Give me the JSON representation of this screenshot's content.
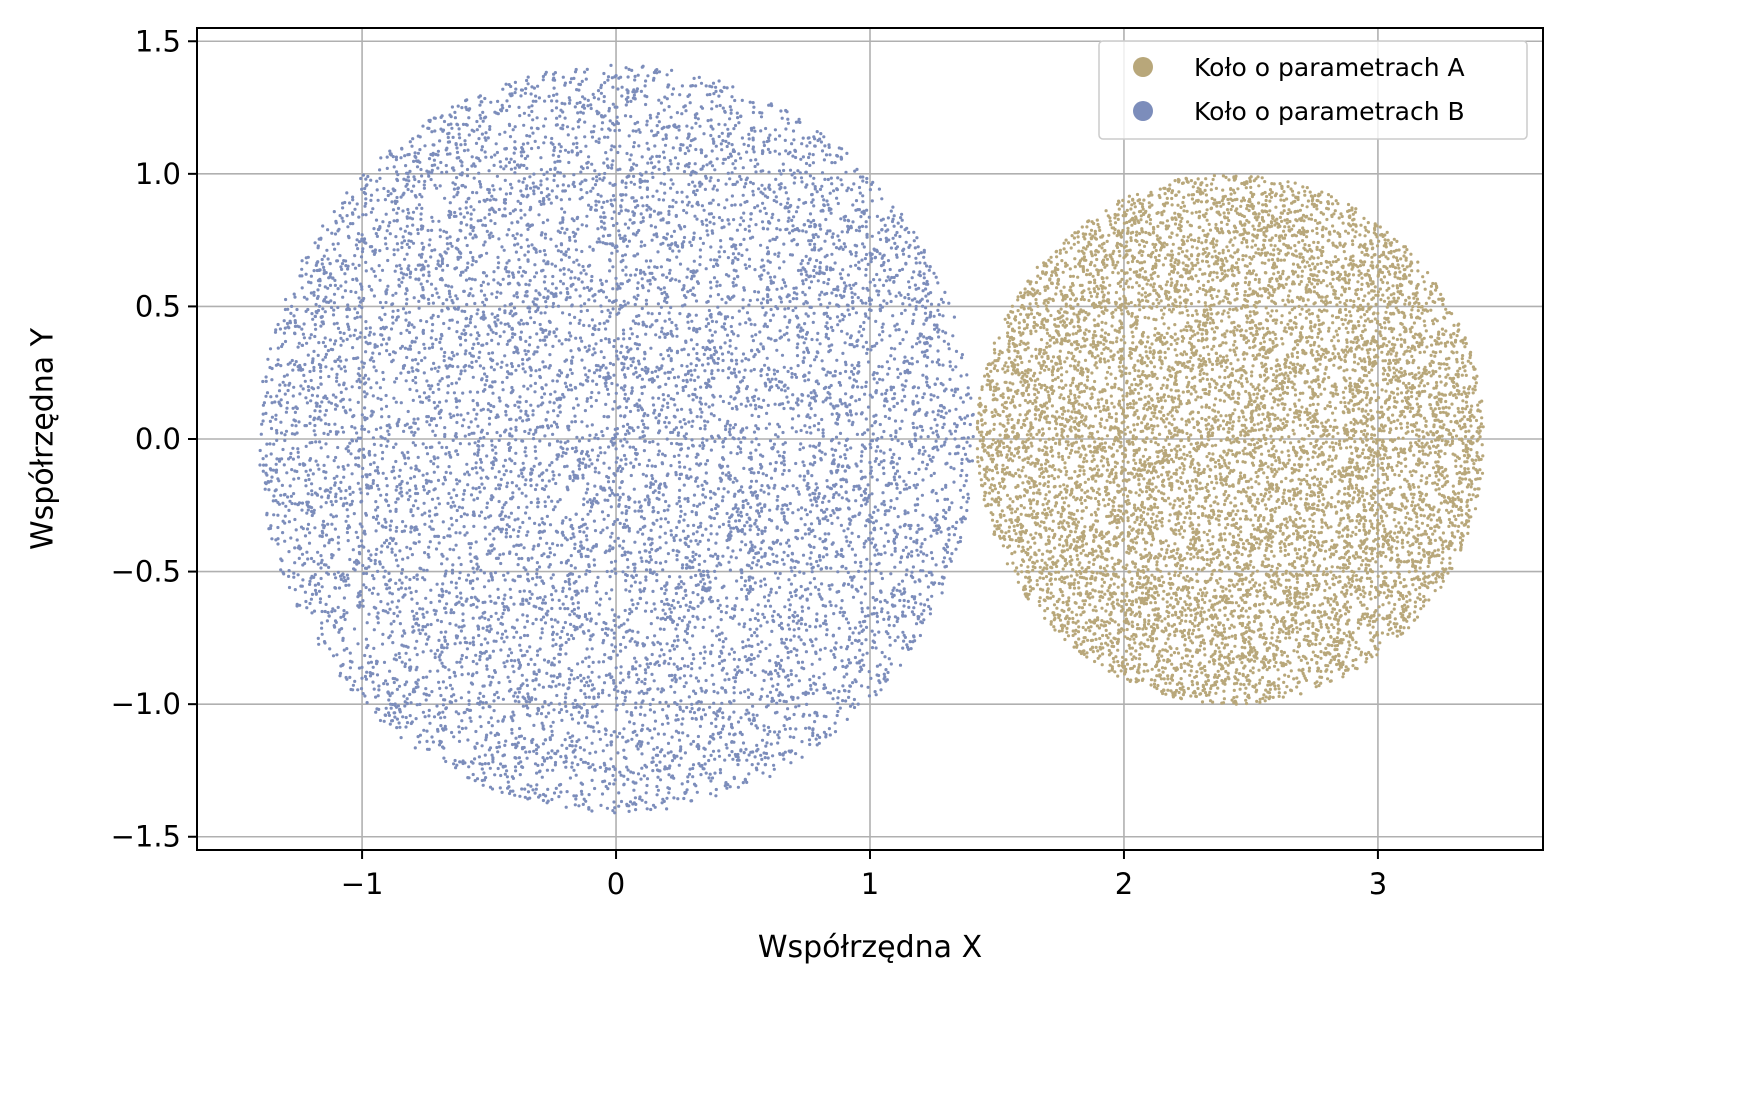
{
  "chart_data": {
    "type": "scatter",
    "title": "",
    "xlabel": "Współrzędna X",
    "ylabel": "Współrzędna Y",
    "xlim": [
      -1.65,
      3.65
    ],
    "ylim": [
      -1.55,
      1.55
    ],
    "x_ticks": [
      -1,
      0,
      1,
      2,
      3
    ],
    "x_tick_labels": [
      "−1",
      "0",
      "1",
      "2",
      "3"
    ],
    "y_ticks": [
      -1.5,
      -1.0,
      -0.5,
      0.0,
      0.5,
      1.0,
      1.5
    ],
    "y_tick_labels": [
      "−1.5",
      "−1.0",
      "−0.5",
      "0.0",
      "0.5",
      "1.0",
      "1.5"
    ],
    "grid": true,
    "legend_position": "top-right",
    "series": [
      {
        "name": "Koło o parametrach A",
        "color": "#b8a77a",
        "shape": "disk",
        "center": [
          2.42,
          0.0
        ],
        "radius": 1.0,
        "point_count": 10000
      },
      {
        "name": "Koło o parametrach B",
        "color": "#7c8dbb",
        "shape": "disk",
        "center": [
          0.0,
          0.0
        ],
        "radius": 1.41,
        "point_count": 10000
      }
    ]
  }
}
